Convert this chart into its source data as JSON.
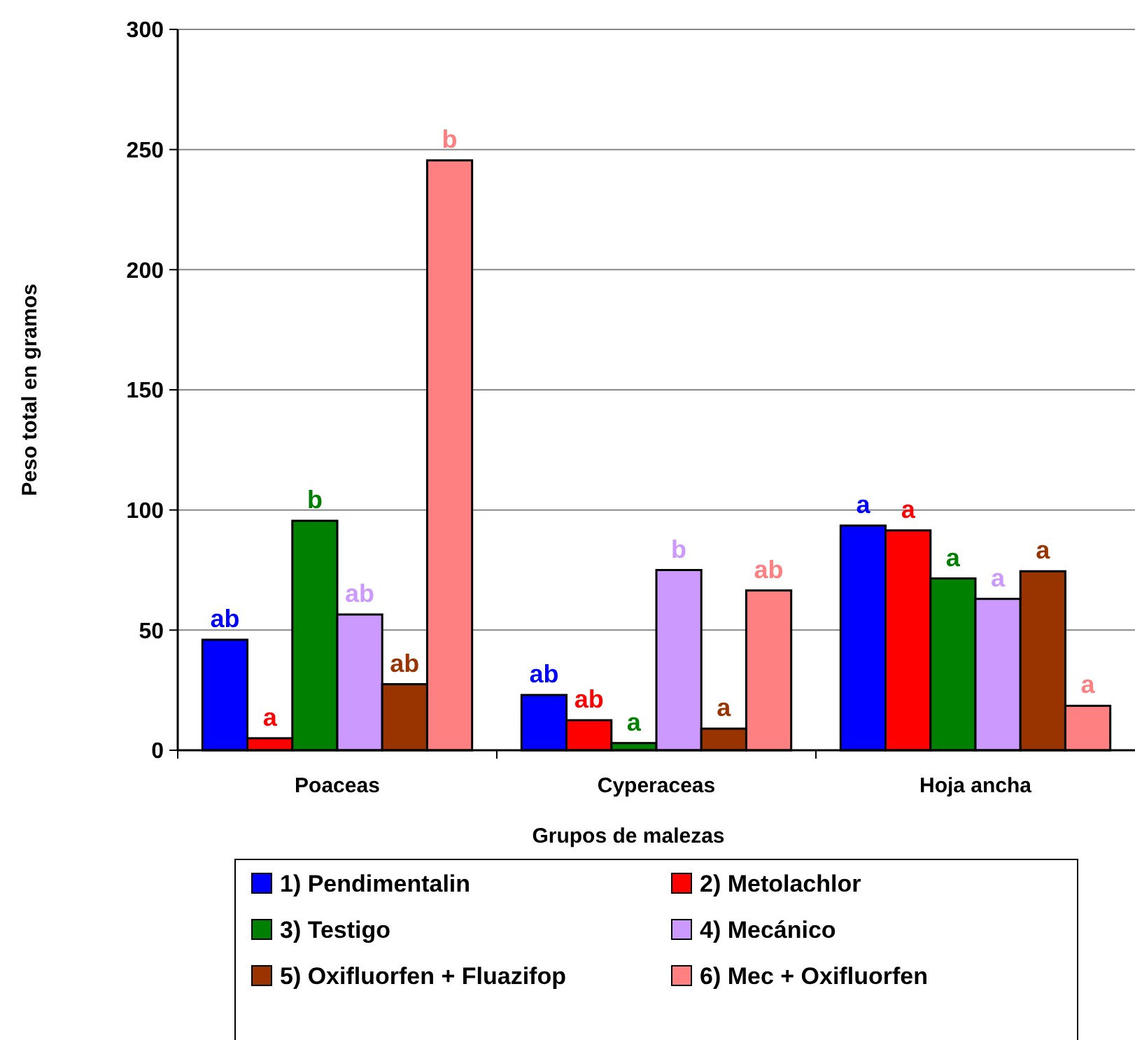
{
  "chart_data": {
    "type": "bar",
    "xlabel": "Grupos de malezas",
    "ylabel": "Peso total en gramos",
    "categories": [
      "Poaceas",
      "Cyperaceas",
      "Hoja ancha"
    ],
    "series": [
      {
        "name": "1) Pendimentalin",
        "color": "#0000ff",
        "values": [
          46,
          23,
          93.5
        ]
      },
      {
        "name": "2) Metolachlor",
        "color": "#ff0000",
        "values": [
          5,
          12.5,
          91.5
        ]
      },
      {
        "name": "3) Testigo",
        "color": "#008000",
        "values": [
          95.5,
          3,
          71.5
        ]
      },
      {
        "name": "4) Mecánico",
        "color": "#cc99ff",
        "values": [
          56.5,
          75,
          63
        ]
      },
      {
        "name": "5) Oxifluorfen + Fluazifop",
        "color": "#993300",
        "values": [
          27.5,
          9,
          74.5
        ]
      },
      {
        "name": "6) Mec + Oxifluorfen",
        "color": "#ff8080",
        "values": [
          245.5,
          66.5,
          18.5
        ]
      }
    ],
    "ylim": [
      0,
      300
    ],
    "yticks": [
      0,
      50,
      100,
      150,
      200,
      250,
      300
    ],
    "grid": "y",
    "legend": "bottom",
    "annotations": [
      "ab",
      "a",
      "b",
      "ab",
      "ab",
      "b",
      "ab",
      "ab",
      "a",
      "b",
      "a",
      "ab",
      "a",
      "a",
      "a",
      "a",
      "a",
      "a"
    ]
  }
}
